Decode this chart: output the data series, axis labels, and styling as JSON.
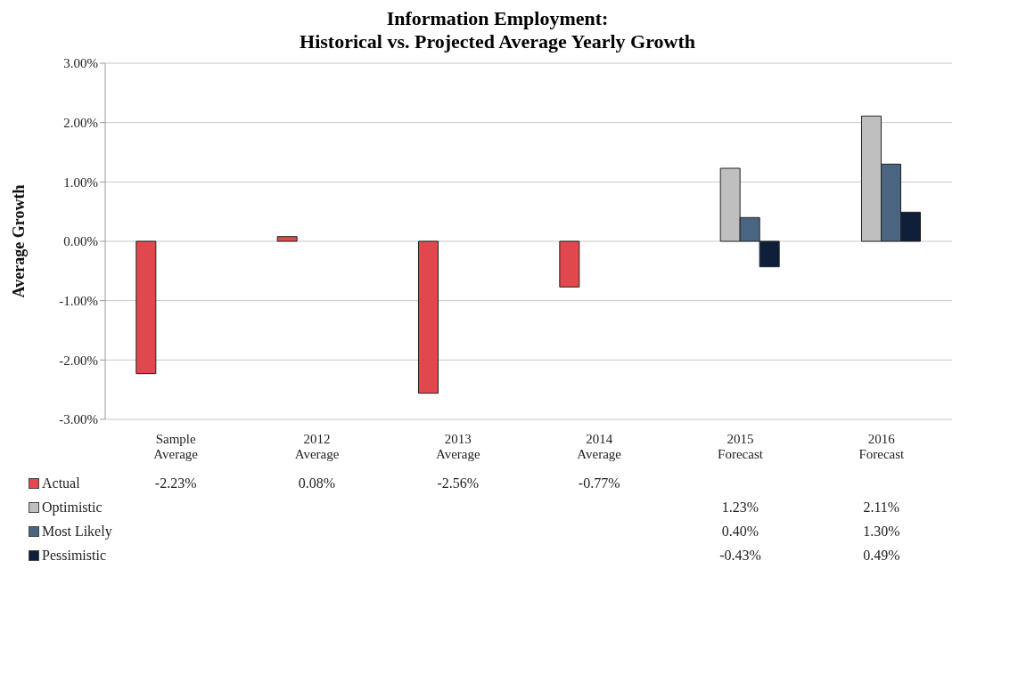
{
  "chart_data": {
    "type": "bar",
    "title": "Information Employment:\nHistorical vs. Projected Average Yearly Growth",
    "ylabel": "Average Growth",
    "categories": [
      "Sample Average",
      "2012 Average",
      "2013 Average",
      "2014 Average",
      "2015 Forecast",
      "2016 Forecast"
    ],
    "series": [
      {
        "name": "Actual",
        "color": "#e0484d",
        "values": [
          -2.23,
          0.08,
          -2.56,
          -0.77,
          null,
          null
        ],
        "value_labels": [
          "-2.23%",
          "0.08%",
          "-2.56%",
          "-0.77%",
          null,
          null
        ]
      },
      {
        "name": "Optimistic",
        "color": "#bfbfbf",
        "values": [
          null,
          null,
          null,
          null,
          1.23,
          2.11
        ],
        "value_labels": [
          null,
          null,
          null,
          null,
          "1.23%",
          "2.11%"
        ]
      },
      {
        "name": "Most Likely",
        "color": "#4a6582",
        "values": [
          null,
          null,
          null,
          null,
          0.4,
          1.3
        ],
        "value_labels": [
          null,
          null,
          null,
          null,
          "0.40%",
          "1.30%"
        ]
      },
      {
        "name": "Pessimistic",
        "color": "#0f1f3a",
        "values": [
          null,
          null,
          null,
          null,
          -0.43,
          0.49
        ],
        "value_labels": [
          null,
          null,
          null,
          null,
          "-0.43%",
          "0.49%"
        ]
      }
    ],
    "ylim": [
      -3,
      3
    ],
    "yticks": [
      {
        "value": -3,
        "label": "-3.00%"
      },
      {
        "value": -2,
        "label": "-2.00%"
      },
      {
        "value": -1,
        "label": "-1.00%"
      },
      {
        "value": 0,
        "label": "0.00%"
      },
      {
        "value": 1,
        "label": "1.00%"
      },
      {
        "value": 2,
        "label": "2.00%"
      },
      {
        "value": 3,
        "label": "3.00%"
      }
    ],
    "grid": "y",
    "legend": "bottom"
  }
}
